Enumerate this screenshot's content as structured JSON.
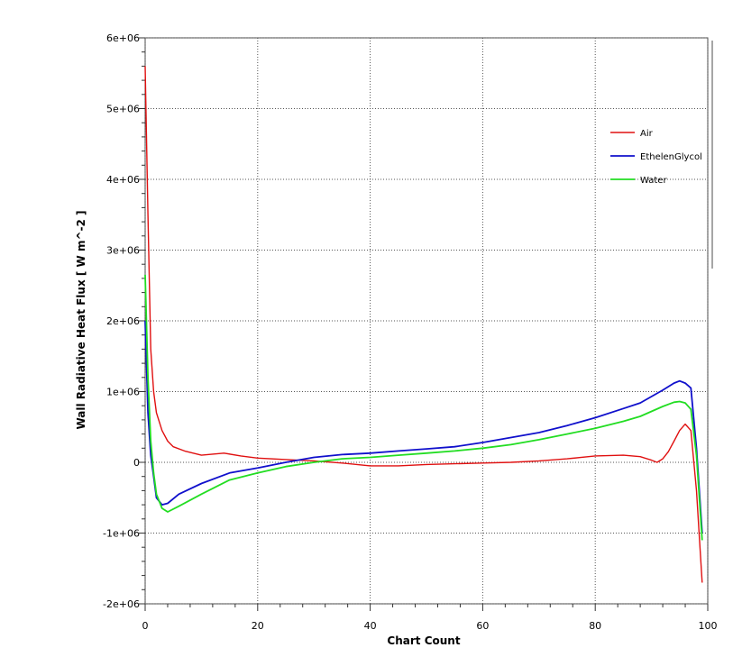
{
  "chart_data": {
    "type": "line",
    "xlabel": "Chart Count",
    "ylabel": "Wall Radiative Heat Flux [ W m^-2 ]",
    "xlim": [
      0,
      100
    ],
    "ylim": [
      -2000000,
      6000000
    ],
    "xticks": [
      0,
      20,
      40,
      60,
      80,
      100
    ],
    "xtick_labels": [
      "0",
      "20",
      "40",
      "60",
      "80",
      "100"
    ],
    "yticks": [
      -2000000,
      -1000000,
      0,
      1000000,
      2000000,
      3000000,
      4000000,
      5000000,
      6000000
    ],
    "ytick_labels": [
      "-2e+06",
      "-1e+06",
      "0",
      "1e+06",
      "2e+06",
      "3e+06",
      "4e+06",
      "5e+06",
      "6e+06"
    ],
    "grid": true,
    "legend_position": "right",
    "series": [
      {
        "name": "Air",
        "color": "#e01010",
        "x": [
          0,
          0.5,
          1,
          1.5,
          2,
          3,
          4,
          5,
          7,
          10,
          14,
          17,
          20,
          25,
          30,
          35,
          40,
          45,
          50,
          55,
          60,
          65,
          70,
          75,
          80,
          85,
          88,
          90,
          91,
          92,
          93,
          94,
          95,
          96,
          97,
          98,
          99
        ],
        "y": [
          5600000,
          3500000,
          1600000,
          1000000,
          700000,
          450000,
          300000,
          220000,
          160000,
          100000,
          130000,
          90000,
          60000,
          40000,
          20000,
          -10000,
          -50000,
          -50000,
          -30000,
          -20000,
          -10000,
          0,
          20000,
          50000,
          90000,
          100000,
          80000,
          30000,
          0,
          50000,
          150000,
          300000,
          450000,
          540000,
          450000,
          -400000,
          -1700000
        ]
      },
      {
        "name": "EthelenGlycol",
        "color": "#1010cc",
        "x": [
          0,
          0.5,
          1,
          1.5,
          2,
          3,
          4,
          6,
          10,
          15,
          20,
          25,
          30,
          35,
          40,
          45,
          50,
          55,
          60,
          65,
          70,
          75,
          80,
          85,
          88,
          90,
          92,
          94,
          95,
          96,
          97,
          98,
          99
        ],
        "y": [
          2000000,
          700000,
          100000,
          -200000,
          -500000,
          -600000,
          -580000,
          -450000,
          -300000,
          -150000,
          -80000,
          0,
          70000,
          110000,
          130000,
          160000,
          190000,
          220000,
          280000,
          350000,
          420000,
          520000,
          630000,
          760000,
          840000,
          930000,
          1020000,
          1120000,
          1150000,
          1120000,
          1050000,
          200000,
          -1000000
        ]
      },
      {
        "name": "Water",
        "color": "#22dd22",
        "x": [
          0,
          0.5,
          1,
          1.5,
          2,
          3,
          4,
          6,
          10,
          15,
          20,
          25,
          30,
          35,
          40,
          45,
          50,
          55,
          60,
          65,
          70,
          75,
          80,
          85,
          88,
          90,
          92,
          94,
          95,
          96,
          97,
          98,
          99
        ],
        "y": [
          2650000,
          1200000,
          300000,
          -150000,
          -450000,
          -650000,
          -700000,
          -620000,
          -450000,
          -250000,
          -150000,
          -60000,
          0,
          50000,
          70000,
          100000,
          130000,
          160000,
          200000,
          250000,
          320000,
          400000,
          480000,
          580000,
          650000,
          720000,
          790000,
          850000,
          860000,
          840000,
          750000,
          100000,
          -1100000
        ]
      }
    ]
  }
}
